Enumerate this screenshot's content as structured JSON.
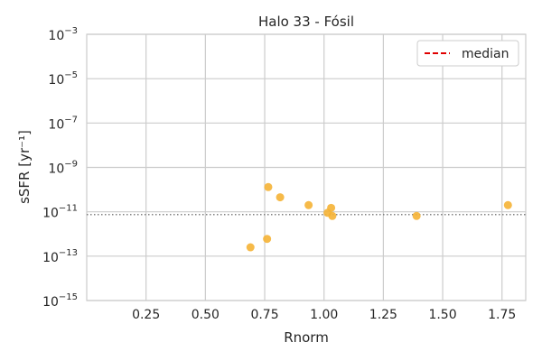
{
  "chart_data": {
    "type": "scatter",
    "title": "Halo 33 - Fósil",
    "xlabel": "Rnorm",
    "ylabel": "sSFR [yr⁻¹]",
    "xlim": [
      0.0,
      1.85
    ],
    "ylim_log10": [
      -15,
      -3
    ],
    "yscale": "log",
    "x_ticks": [
      0.25,
      0.5,
      0.75,
      1.0,
      1.25,
      1.5,
      1.75
    ],
    "x_tick_labels": [
      "0.25",
      "0.50",
      "0.75",
      "1.00",
      "1.25",
      "1.50",
      "1.75"
    ],
    "y_ticks_log10": [
      -15,
      -13,
      -11,
      -9,
      -7,
      -5,
      -3
    ],
    "y_tick_exponents": [
      "−15",
      "−13",
      "−11",
      "−9",
      "−7",
      "−5",
      "−3"
    ],
    "y_tick_base": "10",
    "grid": true,
    "legend_position": "top-right",
    "series": [
      {
        "color": "#f5b335",
        "points": [
          {
            "x": 0.69,
            "y": 2.5e-13
          },
          {
            "x": 0.76,
            "y": 6e-13
          },
          {
            "x": 0.765,
            "y": 1.3e-10
          },
          {
            "x": 0.815,
            "y": 4.5e-11
          },
          {
            "x": 0.935,
            "y": 2e-11
          },
          {
            "x": 1.015,
            "y": 9e-12
          },
          {
            "x": 1.03,
            "y": 1.5e-11
          },
          {
            "x": 1.035,
            "y": 6.5e-12
          },
          {
            "x": 1.39,
            "y": 6.5e-12
          },
          {
            "x": 1.775,
            "y": 2e-11
          }
        ]
      }
    ],
    "median": {
      "label": "median",
      "value": 7.5e-12,
      "legend_color": "#e00000",
      "line_color": "#808080"
    }
  }
}
